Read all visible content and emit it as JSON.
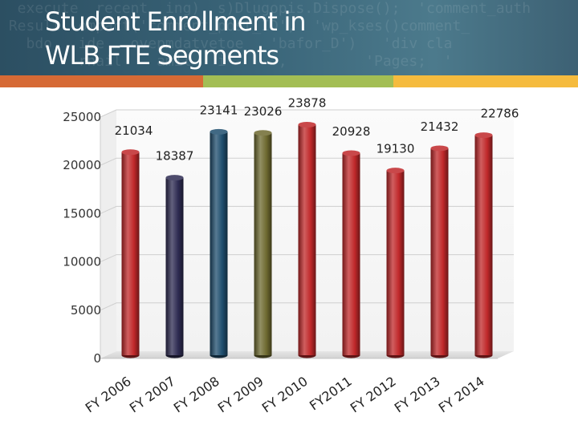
{
  "slide": {
    "title_line1": "Student Enrollment in",
    "title_line2": "WLB FTE Segments"
  },
  "colors": {
    "header_bg": "#3a6579",
    "stripe_orange": "#d66a35",
    "stripe_green": "#a3be54",
    "stripe_yellow": "#f5bb3e"
  },
  "chart_data": {
    "type": "bar",
    "title": "",
    "xlabel": "",
    "ylabel": "",
    "categories": [
      "FY 2006",
      "FY 2007",
      "FY 2008",
      "FY 2009",
      "FY 2010",
      "FY2011",
      "FY 2012",
      "FY 2013",
      "FY 2014"
    ],
    "values": [
      21034,
      18387,
      23141,
      23026,
      23878,
      20928,
      19130,
      21432,
      22786
    ],
    "bar_colors": [
      "#c0282a",
      "#2e2b52",
      "#1f4e6e",
      "#6e6a30",
      "#c0282a",
      "#c0282a",
      "#c0282a",
      "#c0282a",
      "#c0282a"
    ],
    "yticks": [
      "0",
      "5000",
      "10000",
      "15000",
      "20000",
      "25000"
    ],
    "ylim": [
      0,
      25000
    ],
    "grid": true,
    "legend": "none"
  }
}
